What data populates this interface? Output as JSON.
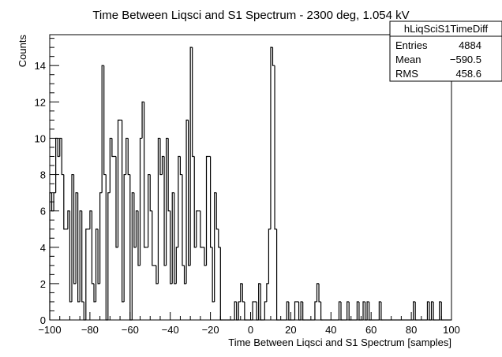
{
  "chart_data": {
    "type": "bar",
    "style": "step-histogram",
    "title": "Time Between Liqsci and S1 Spectrum - 2300 deg, 1.054 kV",
    "xlabel": "Time Between Liqsci and S1 Spectrum [samples]",
    "ylabel": "Counts",
    "xlim": [
      -100,
      100
    ],
    "ylim": [
      0,
      15.7
    ],
    "bin_width": 1,
    "grid": false,
    "x_ticks": [
      -100,
      -80,
      -60,
      -40,
      -20,
      0,
      20,
      40,
      60,
      80,
      100
    ],
    "y_ticks": [
      0,
      2,
      4,
      6,
      8,
      10,
      12,
      14
    ],
    "x": [
      -100,
      -99,
      -98,
      -97,
      -96,
      -95,
      -94,
      -93,
      -92,
      -91,
      -90,
      -89,
      -88,
      -87,
      -86,
      -85,
      -84,
      -83,
      -82,
      -81,
      -80,
      -79,
      -78,
      -77,
      -76,
      -75,
      -74,
      -73,
      -72,
      -71,
      -70,
      -69,
      -68,
      -67,
      -66,
      -65,
      -64,
      -63,
      -62,
      -61,
      -60,
      -59,
      -58,
      -57,
      -56,
      -55,
      -54,
      -53,
      -52,
      -51,
      -50,
      -49,
      -48,
      -47,
      -46,
      -45,
      -44,
      -43,
      -42,
      -41,
      -40,
      -39,
      -38,
      -37,
      -36,
      -35,
      -34,
      -33,
      -32,
      -31,
      -30,
      -29,
      -28,
      -27,
      -26,
      -25,
      -24,
      -23,
      -22,
      -21,
      -20,
      -19,
      -18,
      -17,
      -16,
      -15,
      -14,
      -13,
      -12,
      -11,
      -10,
      -9,
      -8,
      -7,
      -6,
      -5,
      -4,
      -3,
      -2,
      -1,
      0,
      1,
      2,
      3,
      4,
      5,
      6,
      7,
      8,
      9,
      10,
      11,
      12,
      13,
      14,
      15,
      16,
      17,
      18,
      19,
      20,
      21,
      22,
      23,
      24,
      25,
      26,
      27,
      28,
      29,
      30,
      31,
      32,
      33,
      34,
      35,
      36,
      37,
      38,
      39,
      40,
      41,
      42,
      43,
      44,
      45,
      46,
      47,
      48,
      49,
      50,
      51,
      52,
      53,
      54,
      55,
      56,
      57,
      58,
      59,
      60,
      61,
      62,
      63,
      64,
      65,
      66,
      67,
      68,
      69,
      70,
      71,
      72,
      73,
      74,
      75,
      76,
      77,
      78,
      79,
      80,
      81,
      82,
      83,
      84,
      85,
      86,
      87,
      88,
      89,
      90,
      91,
      92,
      93,
      94,
      95,
      96,
      97,
      98,
      99
    ],
    "values": [
      7,
      6,
      7,
      10,
      9,
      10,
      8,
      5,
      5,
      6,
      1,
      8,
      2,
      7,
      1,
      6,
      1,
      0,
      5,
      5,
      6,
      2,
      1,
      5,
      2,
      7,
      14,
      8,
      0,
      7,
      10,
      9,
      9,
      4,
      11,
      11,
      1,
      8,
      10,
      8,
      0,
      7,
      4,
      6,
      3,
      10,
      12,
      4,
      4,
      8,
      6,
      3,
      3,
      2,
      10,
      8,
      9,
      3,
      10,
      6,
      2,
      7,
      2,
      4,
      9,
      8,
      3,
      2,
      11,
      3,
      15,
      9,
      4,
      6,
      6,
      4,
      4,
      3,
      9,
      9,
      4,
      1,
      7,
      5,
      4,
      0,
      0,
      0,
      0,
      0,
      0,
      0,
      1,
      0,
      1,
      2,
      1,
      0,
      0,
      0,
      0,
      1,
      1,
      0,
      2,
      0,
      0,
      1,
      2,
      5,
      15,
      14,
      5,
      0,
      0,
      0,
      0,
      0,
      1,
      0,
      0,
      0,
      1,
      1,
      0,
      1,
      0,
      0,
      0,
      0,
      0,
      0,
      1,
      2,
      1,
      0,
      0,
      0,
      0,
      0,
      0,
      0,
      0,
      0,
      1,
      0,
      0,
      0,
      1,
      0,
      0,
      0,
      0,
      1,
      0,
      0,
      1,
      0,
      1,
      0,
      0,
      0,
      0,
      0,
      1,
      0,
      0,
      0,
      0,
      0,
      0,
      0,
      0,
      0,
      0,
      0,
      0,
      0,
      0,
      0,
      0,
      1,
      0,
      0,
      0,
      0,
      0,
      0,
      1,
      0,
      1,
      0,
      0,
      0,
      1,
      0,
      0,
      0,
      0,
      0
    ],
    "stats_box": {
      "name": "hLiqSciS1TimeDiff",
      "rows": [
        {
          "label": "Entries",
          "value": "4884"
        },
        {
          "label": "Mean",
          "value": "−590.5"
        },
        {
          "label": "RMS",
          "value": "458.6"
        }
      ]
    },
    "colors": {
      "line": "#000000",
      "background": "#ffffff"
    }
  }
}
